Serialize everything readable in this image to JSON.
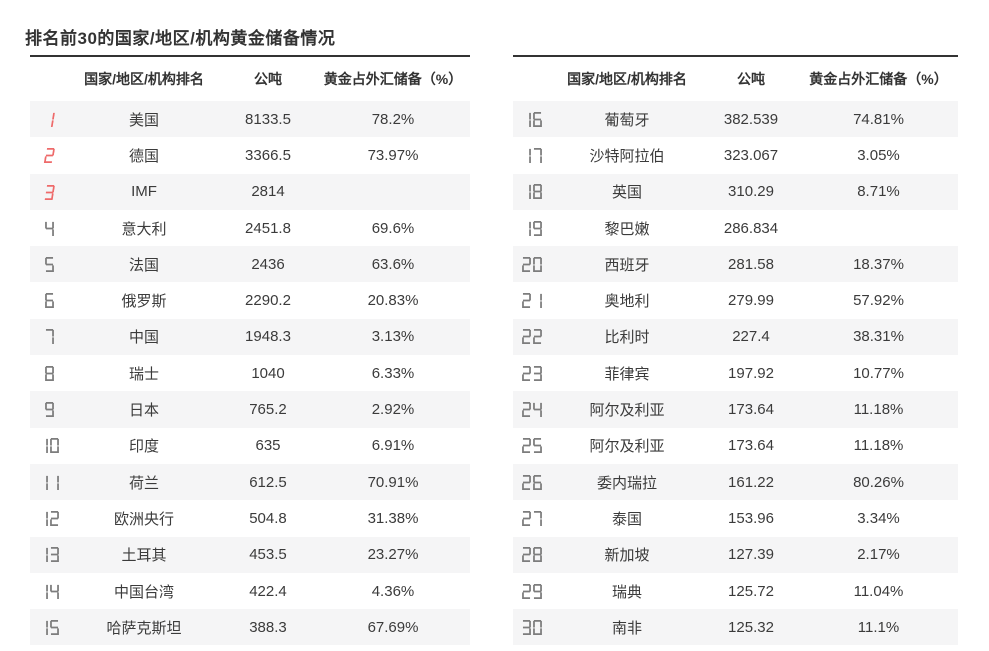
{
  "page_title": "排名前30的国家/地区/机构黄金储备情况",
  "colors": {
    "rank_top_red": "#ee6a6a",
    "rank_gray": "#7d7d7d",
    "row_stripe": "#f5f5f6",
    "table_top_border": "#333333",
    "text": "#3b3b3b"
  },
  "chart_data": {
    "type": "table",
    "title": "排名前30的国家/地区/机构黄金储备情况",
    "columns": [
      "国家/地区/机构排名",
      "公吨",
      "黄金占外汇储备（%）"
    ],
    "tables": [
      {
        "headers": {
          "rank": "",
          "name": "国家/地区/机构排名",
          "tonnes": "公吨",
          "pct": "黄金占外汇储备（%）"
        },
        "rows": [
          {
            "rank": "1",
            "name": "美国",
            "tonnes": "8133.5",
            "pct": "78.2%"
          },
          {
            "rank": "2",
            "name": "德国",
            "tonnes": "3366.5",
            "pct": "73.97%"
          },
          {
            "rank": "3",
            "name": "IMF",
            "tonnes": "2814",
            "pct": ""
          },
          {
            "rank": "4",
            "name": "意大利",
            "tonnes": "2451.8",
            "pct": "69.6%"
          },
          {
            "rank": "5",
            "name": "法国",
            "tonnes": "2436",
            "pct": "63.6%"
          },
          {
            "rank": "6",
            "name": "俄罗斯",
            "tonnes": "2290.2",
            "pct": "20.83%"
          },
          {
            "rank": "7",
            "name": "中国",
            "tonnes": "1948.3",
            "pct": "3.13%"
          },
          {
            "rank": "8",
            "name": "瑞士",
            "tonnes": "1040",
            "pct": "6.33%"
          },
          {
            "rank": "9",
            "name": "日本",
            "tonnes": "765.2",
            "pct": "2.92%"
          },
          {
            "rank": "10",
            "name": "印度",
            "tonnes": "635",
            "pct": "6.91%"
          },
          {
            "rank": "11",
            "name": "荷兰",
            "tonnes": "612.5",
            "pct": "70.91%"
          },
          {
            "rank": "12",
            "name": "欧洲央行",
            "tonnes": "504.8",
            "pct": "31.38%"
          },
          {
            "rank": "13",
            "name": "土耳其",
            "tonnes": "453.5",
            "pct": "23.27%"
          },
          {
            "rank": "14",
            "name": "中国台湾",
            "tonnes": "422.4",
            "pct": "4.36%"
          },
          {
            "rank": "15",
            "name": "哈萨克斯坦",
            "tonnes": "388.3",
            "pct": "67.69%"
          }
        ]
      },
      {
        "headers": {
          "rank": "",
          "name": "国家/地区/机构排名",
          "tonnes": "公吨",
          "pct": "黄金占外汇储备（%）"
        },
        "rows": [
          {
            "rank": "16",
            "name": "葡萄牙",
            "tonnes": "382.539",
            "pct": "74.81%"
          },
          {
            "rank": "17",
            "name": "沙特阿拉伯",
            "tonnes": "323.067",
            "pct": "3.05%"
          },
          {
            "rank": "18",
            "name": "英国",
            "tonnes": "310.29",
            "pct": "8.71%"
          },
          {
            "rank": "19",
            "name": "黎巴嫩",
            "tonnes": "286.834",
            "pct": ""
          },
          {
            "rank": "20",
            "name": "西班牙",
            "tonnes": "281.58",
            "pct": "18.37%"
          },
          {
            "rank": "21",
            "name": "奥地利",
            "tonnes": "279.99",
            "pct": "57.92%"
          },
          {
            "rank": "22",
            "name": "比利时",
            "tonnes": "227.4",
            "pct": "38.31%"
          },
          {
            "rank": "23",
            "name": "菲律宾",
            "tonnes": "197.92",
            "pct": "10.77%"
          },
          {
            "rank": "24",
            "name": "阿尔及利亚",
            "tonnes": "173.64",
            "pct": "11.18%"
          },
          {
            "rank": "25",
            "name": "阿尔及利亚",
            "tonnes": "173.64",
            "pct": "11.18%"
          },
          {
            "rank": "26",
            "name": "委内瑞拉",
            "tonnes": "161.22",
            "pct": "80.26%"
          },
          {
            "rank": "27",
            "name": "泰国",
            "tonnes": "153.96",
            "pct": "3.34%"
          },
          {
            "rank": "28",
            "name": "新加坡",
            "tonnes": "127.39",
            "pct": "2.17%"
          },
          {
            "rank": "29",
            "name": "瑞典",
            "tonnes": "125.72",
            "pct": "11.04%"
          },
          {
            "rank": "30",
            "name": "南非",
            "tonnes": "125.32",
            "pct": "11.1%"
          }
        ]
      }
    ]
  }
}
